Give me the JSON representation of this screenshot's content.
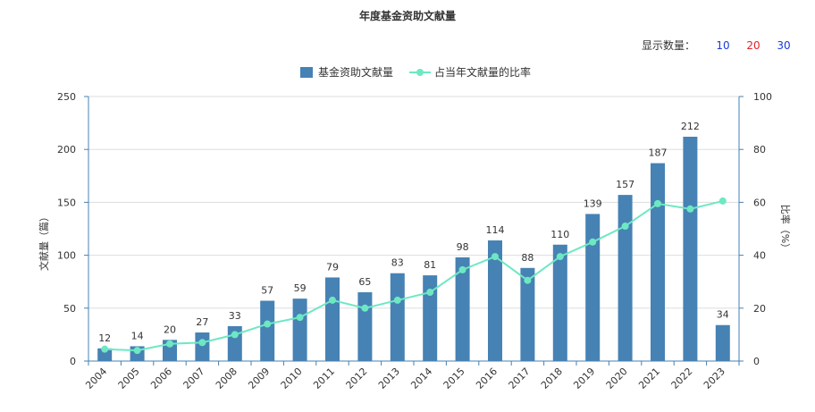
{
  "colors": {
    "bar": "#4682b4",
    "line": "#6de8c2",
    "axis": "#4682b4",
    "opt10": "#1a3bd6",
    "opt20": "#e0202a",
    "opt30": "#1a3bd6"
  },
  "count_selector": {
    "label": "显示数量：",
    "options": [
      "10",
      "20",
      "30"
    ]
  },
  "chart_data": {
    "type": "bar",
    "title": "年度基金资助文献量",
    "categories": [
      "2004",
      "2005",
      "2006",
      "2007",
      "2008",
      "2009",
      "2010",
      "2011",
      "2012",
      "2013",
      "2014",
      "2015",
      "2016",
      "2017",
      "2018",
      "2019",
      "2020",
      "2021",
      "2022",
      "2023"
    ],
    "series": [
      {
        "name": "基金资助文献量",
        "type": "bar",
        "axis": "left",
        "values": [
          12,
          14,
          20,
          27,
          33,
          57,
          59,
          79,
          65,
          83,
          81,
          98,
          114,
          88,
          110,
          139,
          157,
          187,
          212,
          34
        ]
      },
      {
        "name": "占当年文献量的比率",
        "type": "line",
        "axis": "right",
        "values": [
          4.5,
          4,
          6.5,
          7,
          10,
          14,
          16.5,
          23,
          20,
          23,
          26,
          34.5,
          39.5,
          30.5,
          39.5,
          45,
          51,
          59.5,
          57.5,
          60.5
        ]
      }
    ],
    "ylabel": "文献量（篇）",
    "y2label": "比率（%）",
    "ylim": [
      0,
      250
    ],
    "y2lim": [
      0,
      100
    ],
    "yticks": [
      0,
      50,
      100,
      150,
      200,
      250
    ],
    "y2ticks": [
      0,
      20,
      40,
      60,
      80,
      100
    ],
    "grid": true,
    "legend_position": "top-center"
  }
}
